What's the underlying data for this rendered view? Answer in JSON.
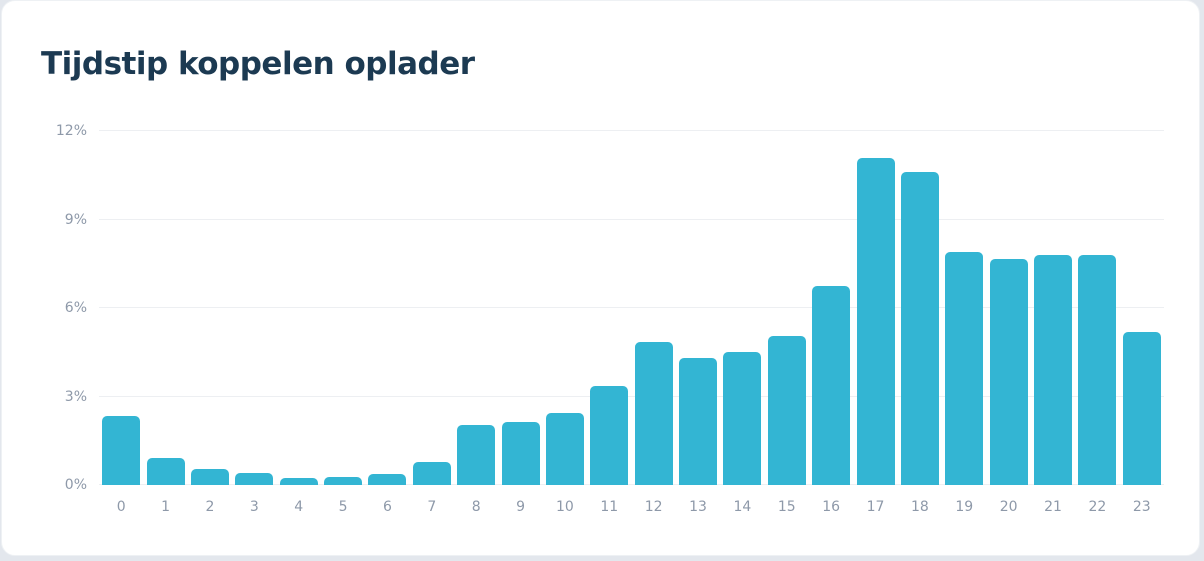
{
  "page": {
    "background_color": "#e3e7ed"
  },
  "card": {
    "background_color": "#ffffff"
  },
  "chart_data": {
    "type": "bar",
    "title": "Tijdstip koppelen oplader",
    "categories": [
      "0",
      "1",
      "2",
      "3",
      "4",
      "5",
      "6",
      "7",
      "8",
      "9",
      "10",
      "11",
      "12",
      "13",
      "14",
      "15",
      "16",
      "17",
      "18",
      "19",
      "20",
      "21",
      "22",
      "23"
    ],
    "values": [
      2.35,
      0.9,
      0.55,
      0.4,
      0.25,
      0.27,
      0.37,
      0.78,
      2.05,
      2.15,
      2.45,
      3.35,
      4.85,
      4.3,
      4.5,
      5.05,
      6.75,
      11.1,
      10.6,
      7.9,
      7.65,
      7.8,
      7.8,
      5.2
    ],
    "unit": "%",
    "xlabel": "",
    "ylabel": "",
    "ylim": [
      0,
      12
    ],
    "ytick_values": [
      0,
      3,
      6,
      9,
      12
    ],
    "ytick_labels": [
      "0%",
      "3%",
      "6%",
      "9%",
      "12%"
    ],
    "grid": true,
    "legend_position": "none",
    "colors": {
      "bar": "#33b5d3",
      "title": "#1c3a52",
      "axis_labels": "#8e99a9",
      "gridline": "#edeff2"
    }
  }
}
